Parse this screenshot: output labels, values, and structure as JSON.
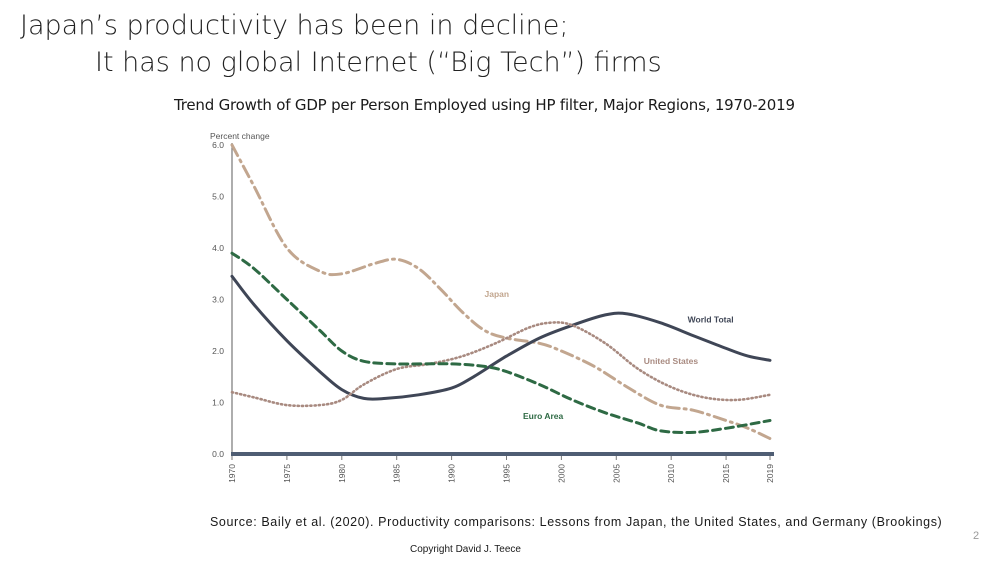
{
  "slide": {
    "title_line1": "Japan’s productivity has been in decline;",
    "title_line2": "It has no global Internet (“Big Tech”) firms",
    "source": "Source: Baily et al. (2020). Productivity comparisons: Lessons from Japan, the United States, and Germany (Brookings)",
    "page_number": "2",
    "copyright": "Copyright David J. Teece"
  },
  "chart_data": {
    "type": "line",
    "title": "Trend Growth of GDP per Person Employed using HP filter, Major Regions, 1970-2019",
    "ylabel": "Percent change",
    "xlim": [
      1970,
      2019
    ],
    "ylim": [
      0,
      6
    ],
    "yticks": [
      "0.0",
      "1.0",
      "2.0",
      "3.0",
      "4.0",
      "5.0",
      "6.0"
    ],
    "xticks": [
      "1970",
      "1975",
      "1980",
      "1985",
      "1990",
      "1995",
      "2000",
      "2005",
      "2010",
      "2015",
      "2019"
    ],
    "grid": false,
    "series": [
      {
        "name": "Japan",
        "color": "#c2a68f",
        "style": "dash-dot",
        "label_at": [
          1993,
          3.05
        ],
        "points": [
          [
            1970,
            6.2
          ],
          [
            1972,
            5.2
          ],
          [
            1975,
            4.0
          ],
          [
            1978,
            3.55
          ],
          [
            1980,
            3.5
          ],
          [
            1983,
            3.7
          ],
          [
            1985,
            3.78
          ],
          [
            1987,
            3.6
          ],
          [
            1989,
            3.2
          ],
          [
            1991,
            2.75
          ],
          [
            1993,
            2.4
          ],
          [
            1995,
            2.25
          ],
          [
            1998,
            2.15
          ],
          [
            2000,
            2.0
          ],
          [
            2003,
            1.7
          ],
          [
            2006,
            1.3
          ],
          [
            2009,
            0.95
          ],
          [
            2012,
            0.85
          ],
          [
            2015,
            0.65
          ],
          [
            2017,
            0.5
          ],
          [
            2019,
            0.3
          ]
        ]
      },
      {
        "name": "World Total",
        "color": "#3f4656",
        "style": "solid",
        "label_at": [
          2011.5,
          2.55
        ],
        "points": [
          [
            1970,
            3.45
          ],
          [
            1972,
            2.9
          ],
          [
            1975,
            2.2
          ],
          [
            1978,
            1.6
          ],
          [
            1980,
            1.25
          ],
          [
            1982,
            1.08
          ],
          [
            1984,
            1.08
          ],
          [
            1987,
            1.15
          ],
          [
            1990,
            1.28
          ],
          [
            1992,
            1.5
          ],
          [
            1995,
            1.9
          ],
          [
            1998,
            2.25
          ],
          [
            2001,
            2.5
          ],
          [
            2004,
            2.7
          ],
          [
            2006,
            2.72
          ],
          [
            2009,
            2.55
          ],
          [
            2012,
            2.3
          ],
          [
            2015,
            2.05
          ],
          [
            2017,
            1.9
          ],
          [
            2019,
            1.82
          ]
        ]
      },
      {
        "name": "United States",
        "color": "#a88a80",
        "style": "dotted",
        "label_at": [
          2007.5,
          1.75
        ],
        "points": [
          [
            1970,
            1.2
          ],
          [
            1972,
            1.1
          ],
          [
            1975,
            0.95
          ],
          [
            1978,
            0.95
          ],
          [
            1980,
            1.05
          ],
          [
            1982,
            1.35
          ],
          [
            1985,
            1.65
          ],
          [
            1988,
            1.75
          ],
          [
            1991,
            1.9
          ],
          [
            1994,
            2.15
          ],
          [
            1997,
            2.45
          ],
          [
            1999,
            2.55
          ],
          [
            2001,
            2.5
          ],
          [
            2004,
            2.15
          ],
          [
            2007,
            1.65
          ],
          [
            2010,
            1.3
          ],
          [
            2013,
            1.1
          ],
          [
            2016,
            1.05
          ],
          [
            2019,
            1.15
          ]
        ]
      },
      {
        "name": "Euro Area",
        "color": "#2e6a44",
        "style": "dashed",
        "label_at": [
          1996.5,
          0.68
        ],
        "points": [
          [
            1970,
            3.9
          ],
          [
            1972,
            3.6
          ],
          [
            1975,
            3.0
          ],
          [
            1978,
            2.4
          ],
          [
            1980,
            2.0
          ],
          [
            1982,
            1.8
          ],
          [
            1985,
            1.75
          ],
          [
            1990,
            1.75
          ],
          [
            1993,
            1.7
          ],
          [
            1995,
            1.6
          ],
          [
            1998,
            1.35
          ],
          [
            2001,
            1.05
          ],
          [
            2004,
            0.8
          ],
          [
            2007,
            0.6
          ],
          [
            2009,
            0.45
          ],
          [
            2012,
            0.42
          ],
          [
            2015,
            0.5
          ],
          [
            2019,
            0.65
          ]
        ]
      }
    ]
  }
}
